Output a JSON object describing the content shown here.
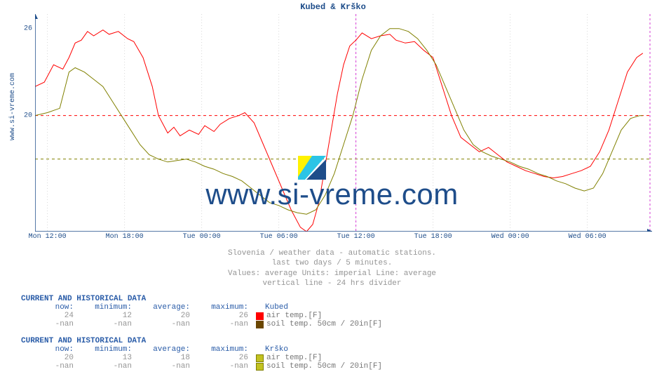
{
  "chart": {
    "title": "Kubed & Krško",
    "ylabel_side": "www.si-vreme.com",
    "watermark_text": "www.si-vreme.com",
    "ylim": [
      12,
      27
    ],
    "yticks": [
      20,
      26
    ],
    "plot_bg": "#ffffff",
    "title_color": "#1e4d8a",
    "axis_color": "#1e4d8a",
    "grid_dash_color_red": "#ff0000",
    "grid_dash_color_olive": "#808000",
    "divider_line_color": "#d63cd6",
    "xticks": [
      {
        "pos": 0.02,
        "label": "Mon 12:00"
      },
      {
        "pos": 0.145,
        "label": "Mon 18:00"
      },
      {
        "pos": 0.27,
        "label": "Tue 00:00"
      },
      {
        "pos": 0.395,
        "label": "Tue 06:00"
      },
      {
        "pos": 0.52,
        "label": "Tue 12:00"
      },
      {
        "pos": 0.645,
        "label": "Tue 18:00"
      },
      {
        "pos": 0.77,
        "label": "Wed 00:00"
      },
      {
        "pos": 0.895,
        "label": "Wed 06:00"
      }
    ],
    "series": [
      {
        "name": "kubed-air",
        "color": "#ff0000",
        "width": 1,
        "data": [
          [
            0,
            22.0
          ],
          [
            0.015,
            22.3
          ],
          [
            0.03,
            23.5
          ],
          [
            0.045,
            23.2
          ],
          [
            0.055,
            24.0
          ],
          [
            0.065,
            25.0
          ],
          [
            0.075,
            25.2
          ],
          [
            0.085,
            25.8
          ],
          [
            0.095,
            25.5
          ],
          [
            0.11,
            25.9
          ],
          [
            0.12,
            25.6
          ],
          [
            0.135,
            25.8
          ],
          [
            0.15,
            25.3
          ],
          [
            0.16,
            25.1
          ],
          [
            0.175,
            24.0
          ],
          [
            0.19,
            22.0
          ],
          [
            0.2,
            20.0
          ],
          [
            0.215,
            18.8
          ],
          [
            0.225,
            19.2
          ],
          [
            0.235,
            18.6
          ],
          [
            0.25,
            19.0
          ],
          [
            0.265,
            18.7
          ],
          [
            0.275,
            19.3
          ],
          [
            0.29,
            18.9
          ],
          [
            0.3,
            19.4
          ],
          [
            0.315,
            19.8
          ],
          [
            0.33,
            20.0
          ],
          [
            0.34,
            20.2
          ],
          [
            0.355,
            19.5
          ],
          [
            0.37,
            18.0
          ],
          [
            0.385,
            16.5
          ],
          [
            0.4,
            15.0
          ],
          [
            0.415,
            13.5
          ],
          [
            0.43,
            12.3
          ],
          [
            0.44,
            12.0
          ],
          [
            0.45,
            12.5
          ],
          [
            0.46,
            14.0
          ],
          [
            0.47,
            16.5
          ],
          [
            0.48,
            19.0
          ],
          [
            0.49,
            21.5
          ],
          [
            0.5,
            23.5
          ],
          [
            0.51,
            24.8
          ],
          [
            0.52,
            25.2
          ],
          [
            0.53,
            25.7
          ],
          [
            0.545,
            25.3
          ],
          [
            0.56,
            25.5
          ],
          [
            0.575,
            25.6
          ],
          [
            0.585,
            25.2
          ],
          [
            0.6,
            25.0
          ],
          [
            0.615,
            25.1
          ],
          [
            0.63,
            24.5
          ],
          [
            0.645,
            24.0
          ],
          [
            0.66,
            22.0
          ],
          [
            0.675,
            20.0
          ],
          [
            0.69,
            18.5
          ],
          [
            0.705,
            18.0
          ],
          [
            0.72,
            17.5
          ],
          [
            0.735,
            17.8
          ],
          [
            0.75,
            17.3
          ],
          [
            0.765,
            16.8
          ],
          [
            0.78,
            16.5
          ],
          [
            0.795,
            16.2
          ],
          [
            0.81,
            16.0
          ],
          [
            0.825,
            15.8
          ],
          [
            0.84,
            15.7
          ],
          [
            0.855,
            15.8
          ],
          [
            0.87,
            16.0
          ],
          [
            0.885,
            16.2
          ],
          [
            0.9,
            16.5
          ],
          [
            0.915,
            17.5
          ],
          [
            0.93,
            19.0
          ],
          [
            0.945,
            21.0
          ],
          [
            0.96,
            23.0
          ],
          [
            0.975,
            24.0
          ],
          [
            0.985,
            24.3
          ]
        ]
      },
      {
        "name": "krsko-air",
        "color": "#808000",
        "width": 1,
        "data": [
          [
            0,
            20.0
          ],
          [
            0.02,
            20.2
          ],
          [
            0.04,
            20.5
          ],
          [
            0.055,
            23.0
          ],
          [
            0.065,
            23.3
          ],
          [
            0.08,
            23.0
          ],
          [
            0.095,
            22.5
          ],
          [
            0.11,
            22.0
          ],
          [
            0.125,
            21.0
          ],
          [
            0.14,
            20.0
          ],
          [
            0.155,
            19.0
          ],
          [
            0.17,
            18.0
          ],
          [
            0.185,
            17.3
          ],
          [
            0.2,
            17.0
          ],
          [
            0.215,
            16.8
          ],
          [
            0.23,
            16.9
          ],
          [
            0.245,
            17.0
          ],
          [
            0.26,
            16.8
          ],
          [
            0.275,
            16.5
          ],
          [
            0.29,
            16.3
          ],
          [
            0.305,
            16.0
          ],
          [
            0.32,
            15.8
          ],
          [
            0.335,
            15.5
          ],
          [
            0.35,
            15.0
          ],
          [
            0.365,
            14.5
          ],
          [
            0.38,
            14.0
          ],
          [
            0.395,
            13.8
          ],
          [
            0.41,
            13.5
          ],
          [
            0.425,
            13.3
          ],
          [
            0.44,
            13.2
          ],
          [
            0.455,
            13.5
          ],
          [
            0.47,
            14.5
          ],
          [
            0.485,
            16.0
          ],
          [
            0.5,
            18.0
          ],
          [
            0.515,
            20.0
          ],
          [
            0.53,
            22.5
          ],
          [
            0.545,
            24.5
          ],
          [
            0.56,
            25.5
          ],
          [
            0.575,
            26.0
          ],
          [
            0.59,
            26.0
          ],
          [
            0.605,
            25.8
          ],
          [
            0.62,
            25.3
          ],
          [
            0.635,
            24.5
          ],
          [
            0.65,
            23.5
          ],
          [
            0.665,
            22.0
          ],
          [
            0.68,
            20.5
          ],
          [
            0.695,
            19.0
          ],
          [
            0.71,
            18.0
          ],
          [
            0.725,
            17.5
          ],
          [
            0.74,
            17.2
          ],
          [
            0.755,
            17.0
          ],
          [
            0.77,
            16.8
          ],
          [
            0.785,
            16.5
          ],
          [
            0.8,
            16.3
          ],
          [
            0.815,
            16.0
          ],
          [
            0.83,
            15.8
          ],
          [
            0.845,
            15.5
          ],
          [
            0.86,
            15.3
          ],
          [
            0.875,
            15.0
          ],
          [
            0.89,
            14.8
          ],
          [
            0.905,
            15.0
          ],
          [
            0.92,
            16.0
          ],
          [
            0.935,
            17.5
          ],
          [
            0.95,
            19.0
          ],
          [
            0.965,
            19.8
          ],
          [
            0.98,
            20.0
          ],
          [
            0.985,
            20.0
          ]
        ]
      }
    ],
    "divider_pos": 0.52
  },
  "caption": {
    "line1": "Slovenia / weather data - automatic stations.",
    "line2": "last two days / 5 minutes.",
    "line3": "Values: average  Units: imperial  Line: average",
    "line4": "vertical line - 24 hrs  divider"
  },
  "tables": [
    {
      "heading": "CURRENT AND HISTORICAL DATA",
      "station": "Kubed",
      "cols": [
        "now:",
        "minimum:",
        "average:",
        "maximum:"
      ],
      "rows": [
        {
          "vals": [
            "24",
            "12",
            "20",
            "26"
          ],
          "swatch_fill": "#ff0000",
          "swatch_border": "#ff0000",
          "legend": "air temp.[F]"
        },
        {
          "vals": [
            "-nan",
            "-nan",
            "-nan",
            "-nan"
          ],
          "swatch_fill": "#6b4600",
          "swatch_border": "#6b4600",
          "legend": "soil temp. 50cm / 20in[F]"
        }
      ]
    },
    {
      "heading": "CURRENT AND HISTORICAL DATA",
      "station": "Krško",
      "cols": [
        "now:",
        "minimum:",
        "average:",
        "maximum:"
      ],
      "rows": [
        {
          "vals": [
            "20",
            "13",
            "18",
            "26"
          ],
          "swatch_fill": "#c2c221",
          "swatch_border": "#808000",
          "legend": "air temp.[F]"
        },
        {
          "vals": [
            "-nan",
            "-nan",
            "-nan",
            "-nan"
          ],
          "swatch_fill": "#c2c221",
          "swatch_border": "#808000",
          "legend": "soil temp. 50cm / 20in[F]"
        }
      ]
    }
  ],
  "logo": {
    "colors": [
      "#fff200",
      "#2bc4e6",
      "#1e4d8a"
    ]
  }
}
